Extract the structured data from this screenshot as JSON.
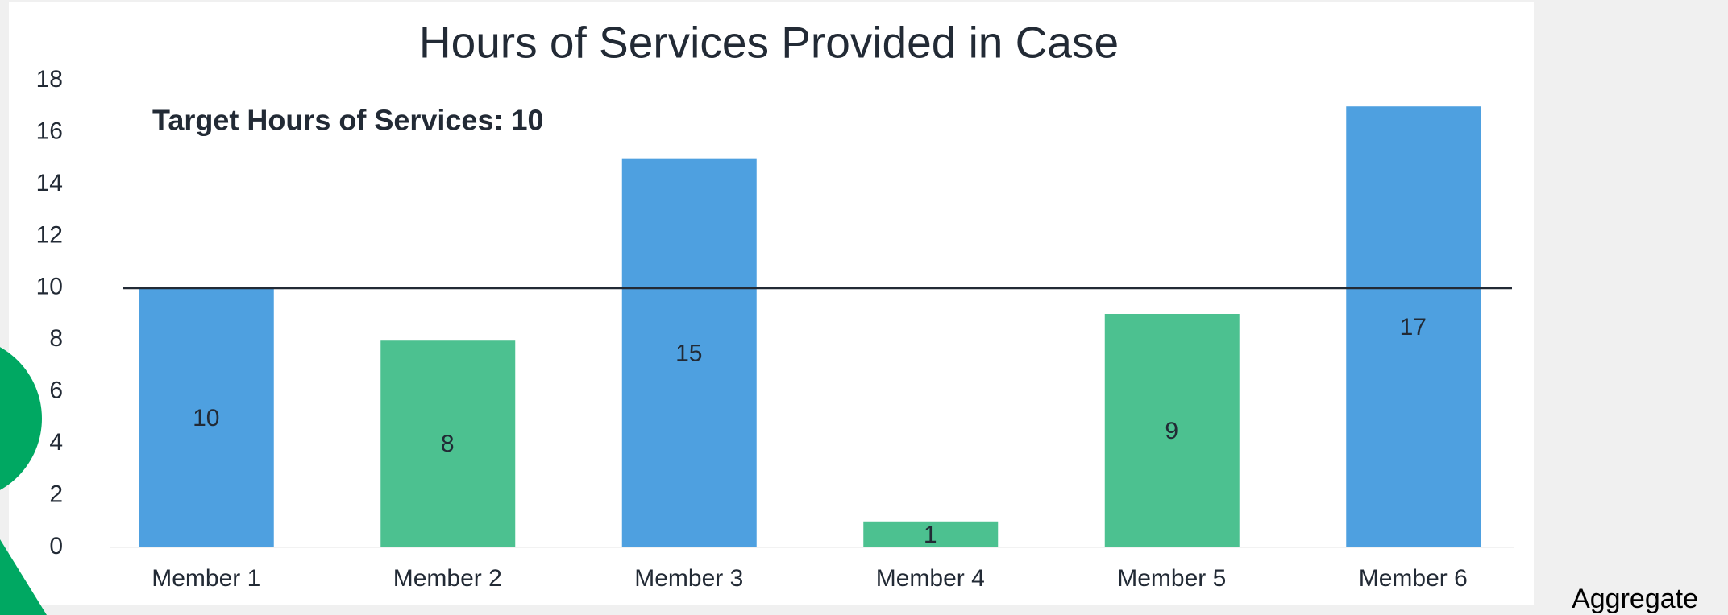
{
  "chart_data": {
    "type": "bar",
    "title": "Hours of Services Provided in Case",
    "annotation": "Target Hours of Services: 10",
    "target": 10,
    "categories": [
      "Member 1",
      "Member 2",
      "Member 3",
      "Member 4",
      "Member 5",
      "Member 6"
    ],
    "values": [
      10,
      8,
      15,
      1,
      9,
      17
    ],
    "colors": [
      "#4ea0e0",
      "#4cc190",
      "#4ea0e0",
      "#4cc190",
      "#4cc190",
      "#4ea0e0"
    ],
    "ylim": [
      0,
      18
    ],
    "yticks": [
      0,
      2,
      4,
      6,
      8,
      10,
      12,
      14,
      16,
      18
    ],
    "grid": false
  },
  "footer_label": "Aggregate"
}
